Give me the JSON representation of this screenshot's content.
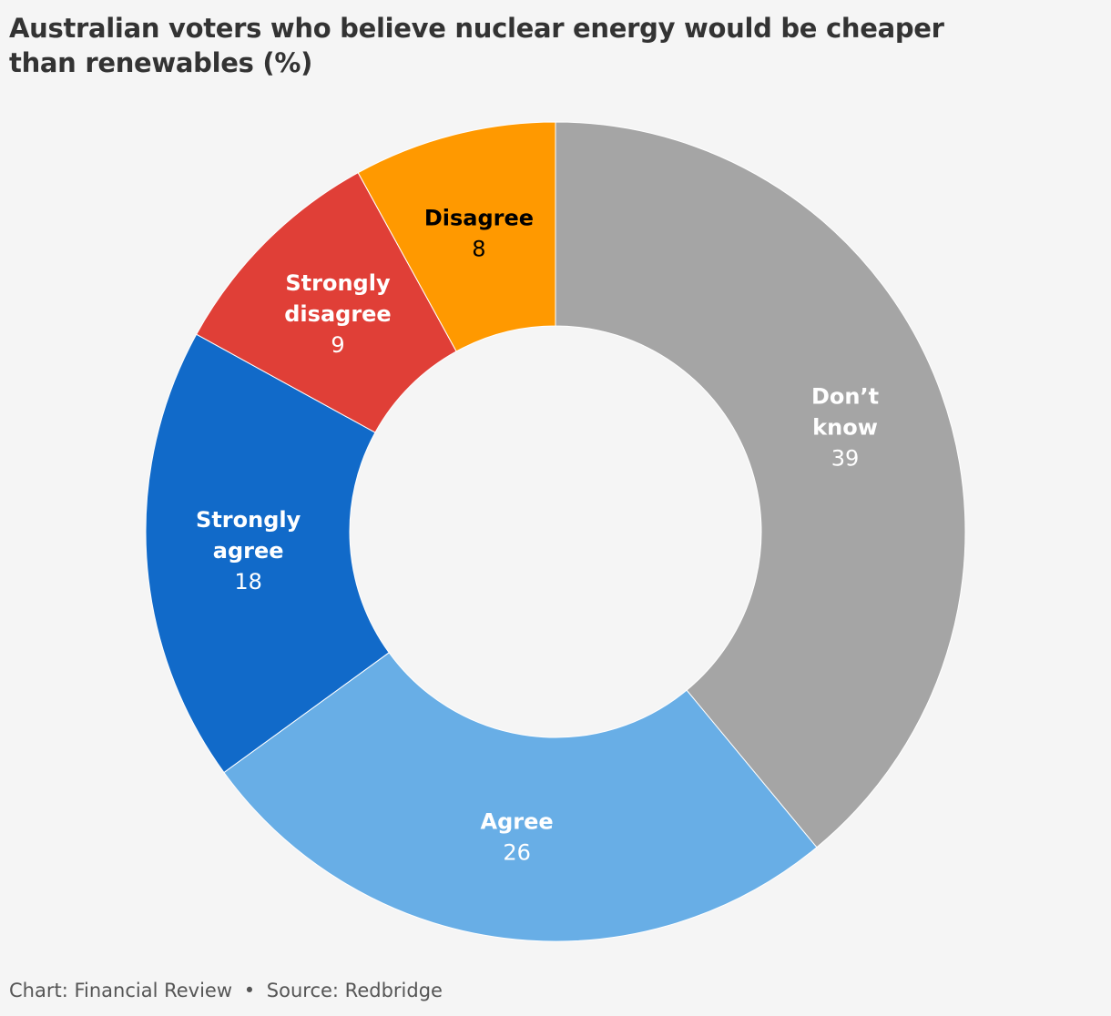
{
  "title": "Australian voters who believe nuclear energy would be cheaper than renewables (%)",
  "footer": {
    "chart_credit": "Chart: Financial Review",
    "separator": "•",
    "source": "Source: Redbridge"
  },
  "chart_data": {
    "type": "pie",
    "variant": "donut",
    "title": "Australian voters who believe nuclear energy would be cheaper than renewables (%)",
    "start": "12 o'clock",
    "direction": "clockwise",
    "slices": [
      {
        "label": "Don’t know",
        "lines": [
          "Don’t",
          "know"
        ],
        "value": 39,
        "color": "#a5a5a5",
        "text_color": "#ffffff"
      },
      {
        "label": "Agree",
        "lines": [
          "Agree"
        ],
        "value": 26,
        "color": "#68aee6",
        "text_color": "#ffffff"
      },
      {
        "label": "Strongly agree",
        "lines": [
          "Strongly",
          "agree"
        ],
        "value": 18,
        "color": "#116ac9",
        "text_color": "#ffffff"
      },
      {
        "label": "Strongly disagree",
        "lines": [
          "Strongly",
          "disagree"
        ],
        "value": 9,
        "color": "#e03f37",
        "text_color": "#ffffff"
      },
      {
        "label": "Disagree",
        "lines": [
          "Disagree"
        ],
        "value": 8,
        "color": "#ff9900",
        "text_color": "#000000"
      }
    ]
  }
}
